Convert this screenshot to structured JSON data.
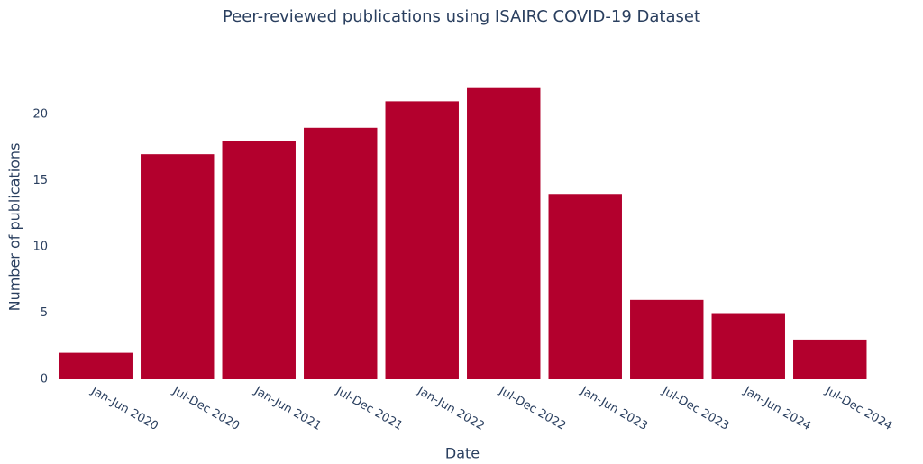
{
  "chart_data": {
    "type": "bar",
    "title": "Peer-reviewed publications using ISAIRC COVID-19 Dataset",
    "x_label": "Date",
    "y_label": "Number of publications",
    "categories": [
      "Jan-Jun 2020",
      "Jul-Dec 2020",
      "Jan-Jun 2021",
      "Jul-Dec 2021",
      "Jan-Jun 2022",
      "Jul-Dec 2022",
      "Jan-Jun 2023",
      "Jul-Dec 2023",
      "Jan-Jun 2024",
      "Jul-Dec 2024"
    ],
    "values": [
      2,
      17,
      18,
      19,
      21,
      22,
      14,
      6,
      5,
      3
    ],
    "color": "#b3002d",
    "ylim": [
      0,
      23
    ],
    "yticks": [
      0,
      5,
      10,
      15,
      20
    ],
    "grid": false
  }
}
